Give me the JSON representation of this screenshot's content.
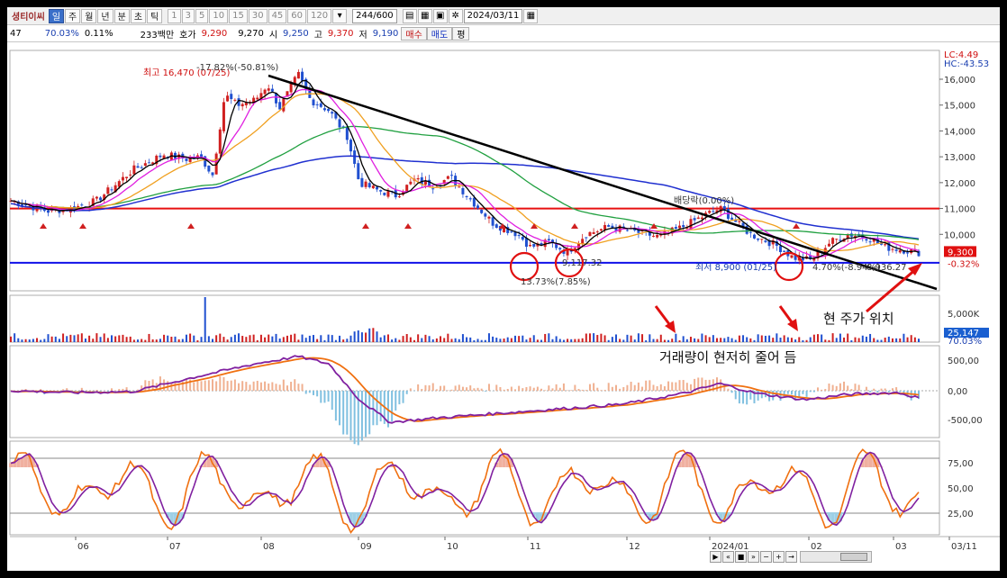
{
  "toolbar": {
    "title": "셩티이씨",
    "periods": [
      "일",
      "주",
      "월",
      "년",
      "분",
      "초",
      "틱"
    ],
    "active_period": "일",
    "intervals": [
      "1",
      "3",
      "5",
      "10",
      "15",
      "30",
      "45",
      "60",
      "120"
    ],
    "count": "244/600",
    "date": "2024/03/11"
  },
  "quote": {
    "code_tail": "47",
    "change_pct": "70.03%",
    "turnover": "0.11%",
    "amount": "233백만",
    "bid_label": "호가",
    "bid": "9,290",
    "ask": "9,270",
    "open_label": "시",
    "open": "9,250",
    "high_label": "고",
    "high": "9,370",
    "low_label": "저",
    "low": "9,190",
    "buy_label": "매수",
    "sell_label": "매도",
    "flat_label": "평"
  },
  "price_chart": {
    "lc": "LC:4.49",
    "hc": "HC:-43.53",
    "y_ticks": [
      "16,000",
      "15,000",
      "14,000",
      "13,000",
      "12,000",
      "11,000",
      "10,000"
    ],
    "current_price": "9,300",
    "current_pct": "-0.32%",
    "high_label": "최고 16,470 (07/25)",
    "high_pct": "-17.82%(-50.81%)",
    "dividend_label": "배당락(0.00%)",
    "low_label": "최저 8,900 (01/25)",
    "low_pct": "4.70%(-8.94%)",
    "low_pct2": "8,936.27",
    "oct_low": "13.73%(7.85%)",
    "nov_low": "9,117.32",
    "red_line": 11000,
    "blue_line": 8900
  },
  "volume_chart": {
    "y_tick": "5,000K",
    "volume_value": "25,147",
    "volume_pct": "70.03%"
  },
  "macd_chart": {
    "y_ticks": [
      "500,00",
      "0,00",
      "-500,00"
    ]
  },
  "stoch_chart": {
    "y_ticks": [
      "75,00",
      "50,00",
      "25,00"
    ]
  },
  "x_axis": [
    "06",
    "07",
    "08",
    "09",
    "10",
    "11",
    "12",
    "2024/01",
    "02",
    "03",
    "03/11"
  ],
  "annotations": {
    "current_price_note": "현 주가 위치",
    "volume_note": "거래량이 현저히 줄어 듬"
  },
  "colors": {
    "red_line": "#e81010",
    "blue_line": "#1010e8",
    "trend_line": "#000000",
    "ma5": "#000000",
    "ma10": "#e020e0",
    "ma20": "#f0a020",
    "ma60": "#20a040",
    "ma120": "#2030d0",
    "macd": "#8020a0",
    "signal": "#f07010",
    "stoch_k": "#f07010",
    "stoch_d": "#8020a0"
  }
}
